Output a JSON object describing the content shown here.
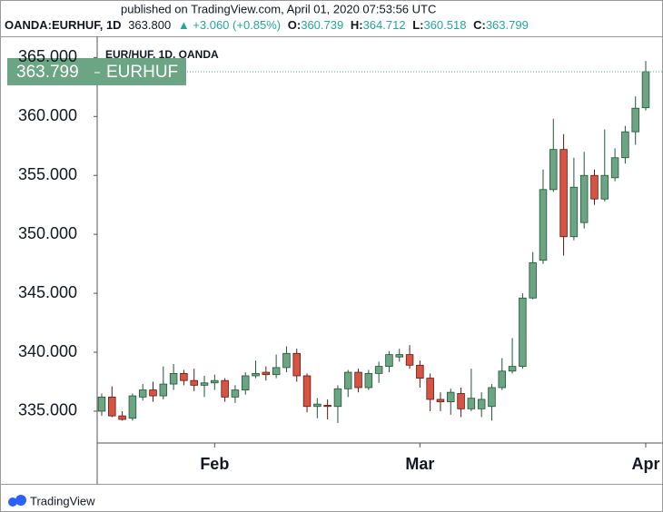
{
  "header": {
    "published": "published on TradingView.com, April 01, 2020 07:53:56 UTC",
    "symbol": "OANDA:EURHUF, 1D",
    "last": "363.800",
    "change": "▲ +3.060 (+0.85%)",
    "ohlc": [
      {
        "label": "O:",
        "value": "360.739"
      },
      {
        "label": "H:",
        "value": "364.712"
      },
      {
        "label": "L:",
        "value": "360.518"
      },
      {
        "label": "C:",
        "value": "363.799"
      }
    ]
  },
  "chart_data": {
    "type": "candlestick",
    "title": "EUR/HUF, 1D, OANDA",
    "symbol_tag": "EURHUF",
    "categories": [
      null,
      null,
      null,
      null,
      null,
      null,
      null,
      null,
      null,
      null,
      null,
      "Feb",
      null,
      null,
      null,
      null,
      null,
      null,
      null,
      null,
      null,
      null,
      null,
      null,
      null,
      null,
      null,
      null,
      null,
      null,
      null,
      "Mar",
      null,
      null,
      null,
      null,
      null,
      null,
      null,
      null,
      null,
      null,
      null,
      null,
      null,
      null,
      null,
      null,
      null,
      null,
      null,
      null,
      null,
      "Apr"
    ],
    "open": [
      335.0,
      336.2,
      334.6,
      334.4,
      336.2,
      336.8,
      336.3,
      337.3,
      338.2,
      337.6,
      337.2,
      337.4,
      337.6,
      336.2,
      336.8,
      338.0,
      338.3,
      338.1,
      338.7,
      339.9,
      338.0,
      335.4,
      335.5,
      335.4,
      336.9,
      338.3,
      337.0,
      338.2,
      338.8,
      339.6,
      339.8,
      338.9,
      337.8,
      336.0,
      335.8,
      336.5,
      335.2,
      335.2,
      335.4,
      337.0,
      338.4,
      338.8,
      344.6,
      347.8,
      353.8,
      357.2,
      349.8,
      351.0,
      355.0,
      353.0,
      354.8,
      356.5,
      358.7,
      360.739
    ],
    "high": [
      336.5,
      337.1,
      335.0,
      336.5,
      337.3,
      337.5,
      338.8,
      339.0,
      338.5,
      338.6,
      338.0,
      338.1,
      337.8,
      337.2,
      338.3,
      339.3,
      338.8,
      339.8,
      340.5,
      340.3,
      338.2,
      336.1,
      336.0,
      337.2,
      338.5,
      338.6,
      338.5,
      339.2,
      340.1,
      340.3,
      340.6,
      339.3,
      338.2,
      336.6,
      336.9,
      337.0,
      338.6,
      336.6,
      337.3,
      339.5,
      341.2,
      345.0,
      348.5,
      355.5,
      359.8,
      358.5,
      356.5,
      357.0,
      355.5,
      358.9,
      357.3,
      359.2,
      361.7,
      364.712
    ],
    "low": [
      334.6,
      334.5,
      334.2,
      334.2,
      335.9,
      335.8,
      336.0,
      336.8,
      337.2,
      336.7,
      336.2,
      336.8,
      335.8,
      335.7,
      336.4,
      337.8,
      337.6,
      337.8,
      338.3,
      337.5,
      334.9,
      334.4,
      334.3,
      334.0,
      336.2,
      336.6,
      336.8,
      337.4,
      338.3,
      339.2,
      338.6,
      337.0,
      335.0,
      335.0,
      334.7,
      334.5,
      335.0,
      334.5,
      334.2,
      336.8,
      338.2,
      338.6,
      344.5,
      347.5,
      353.6,
      348.2,
      349.5,
      350.5,
      352.5,
      352.8,
      354.5,
      356.0,
      357.6,
      360.518
    ],
    "close": [
      336.2,
      334.6,
      334.3,
      336.3,
      336.8,
      336.3,
      337.3,
      338.2,
      337.6,
      337.2,
      337.4,
      337.6,
      336.2,
      336.8,
      338.0,
      338.2,
      338.1,
      338.7,
      339.9,
      338.0,
      335.4,
      335.6,
      335.4,
      336.9,
      338.3,
      337.0,
      338.2,
      338.8,
      339.8,
      339.8,
      338.9,
      337.8,
      336.0,
      335.8,
      336.6,
      335.2,
      336.1,
      336.0,
      337.0,
      338.4,
      338.8,
      344.6,
      347.6,
      353.8,
      357.2,
      349.8,
      354.0,
      355.0,
      353.0,
      355.0,
      356.5,
      358.7,
      360.7,
      363.799
    ],
    "up_color": "#6ba583",
    "down_color": "#d75442",
    "ylim": [
      332.3,
      366.8
    ],
    "yticks": [
      {
        "value": 335,
        "label": "335.000"
      },
      {
        "value": 340,
        "label": "340.000"
      },
      {
        "value": 345,
        "label": "345.000"
      },
      {
        "value": 350,
        "label": "350.000"
      },
      {
        "value": 355,
        "label": "355.000"
      },
      {
        "value": 360,
        "label": "360.000"
      },
      {
        "value": 365,
        "label": "365.000"
      }
    ],
    "brand": "TradingView"
  }
}
